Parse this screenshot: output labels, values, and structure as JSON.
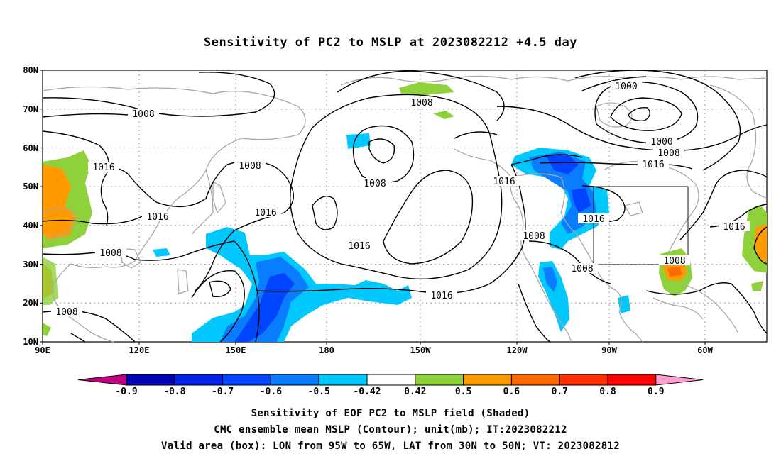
{
  "title": "Sensitivity of PC2 to MSLP at 2023082212 +4.5 day",
  "map": {
    "lat_labels": [
      "80N",
      "70N",
      "60N",
      "50N",
      "40N",
      "30N",
      "20N",
      "10N"
    ],
    "lon_labels": [
      "90E",
      "120E",
      "150E",
      "180",
      "150W",
      "120W",
      "90W",
      "60W"
    ],
    "contour_labels": [
      "1008",
      "1016",
      "1008",
      "1016",
      "1016",
      "1008",
      "1016",
      "1008",
      "1016",
      "1008",
      "1000",
      "1000",
      "1008",
      "1016",
      "1016",
      "1008",
      "1016",
      "1008",
      "1008",
      "1016",
      "1008"
    ]
  },
  "colorbar": {
    "labels": [
      "-0.9",
      "-0.8",
      "-0.7",
      "-0.6",
      "-0.5",
      "-0.42",
      "0.42",
      "0.5",
      "0.6",
      "0.7",
      "0.8",
      "0.9"
    ],
    "colors": [
      "#c0007f",
      "#0000b4",
      "#0022e6",
      "#0044ff",
      "#0a7cff",
      "#00c8ff",
      "#ffffff",
      "#8fd13a",
      "#ff9a00",
      "#ff6a00",
      "#ff3200",
      "#ff0000",
      "#ff9fcf"
    ]
  },
  "captions": [
    "Sensitivity of EOF PC2 to MSLP field (Shaded)",
    "CMC ensemble mean MSLP (Contour); unit(mb); IT:2023082212",
    "Valid area (box): LON from 95W to 65W, LAT from 30N to 50N; VT: 2023082812"
  ]
}
